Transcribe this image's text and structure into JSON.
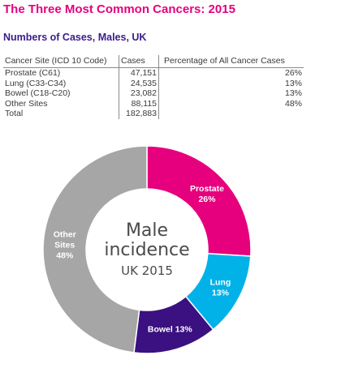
{
  "title": "The Three Most Common Cancers: 2015",
  "subtitle": "Numbers of Cases, Males, UK",
  "table": {
    "headers": [
      "Cancer Site (ICD 10 Code)",
      "Cases",
      "Percentage of All Cancer Cases"
    ],
    "rows": [
      [
        "Prostate (C61)",
        "47,151",
        "26%"
      ],
      [
        "Lung (C33-C34)",
        "24,535",
        "13%"
      ],
      [
        "Bowel (C18-C20)",
        "23,082",
        "13%"
      ],
      [
        "Other Sites",
        "88,115",
        "48%"
      ],
      [
        "Total",
        "182,883",
        ""
      ]
    ]
  },
  "chart_data": {
    "type": "pie",
    "categories": [
      "Prostate",
      "Lung",
      "Bowel",
      "Other Sites"
    ],
    "values": [
      26,
      13,
      13,
      48
    ],
    "colors": [
      "#e6007e",
      "#00b2e8",
      "#3b1080",
      "#a6a6a6"
    ],
    "labels": [
      [
        "Prostate",
        "26%"
      ],
      [
        "Lung",
        "13%"
      ],
      [
        "Bowel 13%"
      ],
      [
        "Other",
        "Sites",
        "48%"
      ]
    ],
    "center_text": [
      "Male",
      "incidence",
      "UK 2015"
    ]
  }
}
